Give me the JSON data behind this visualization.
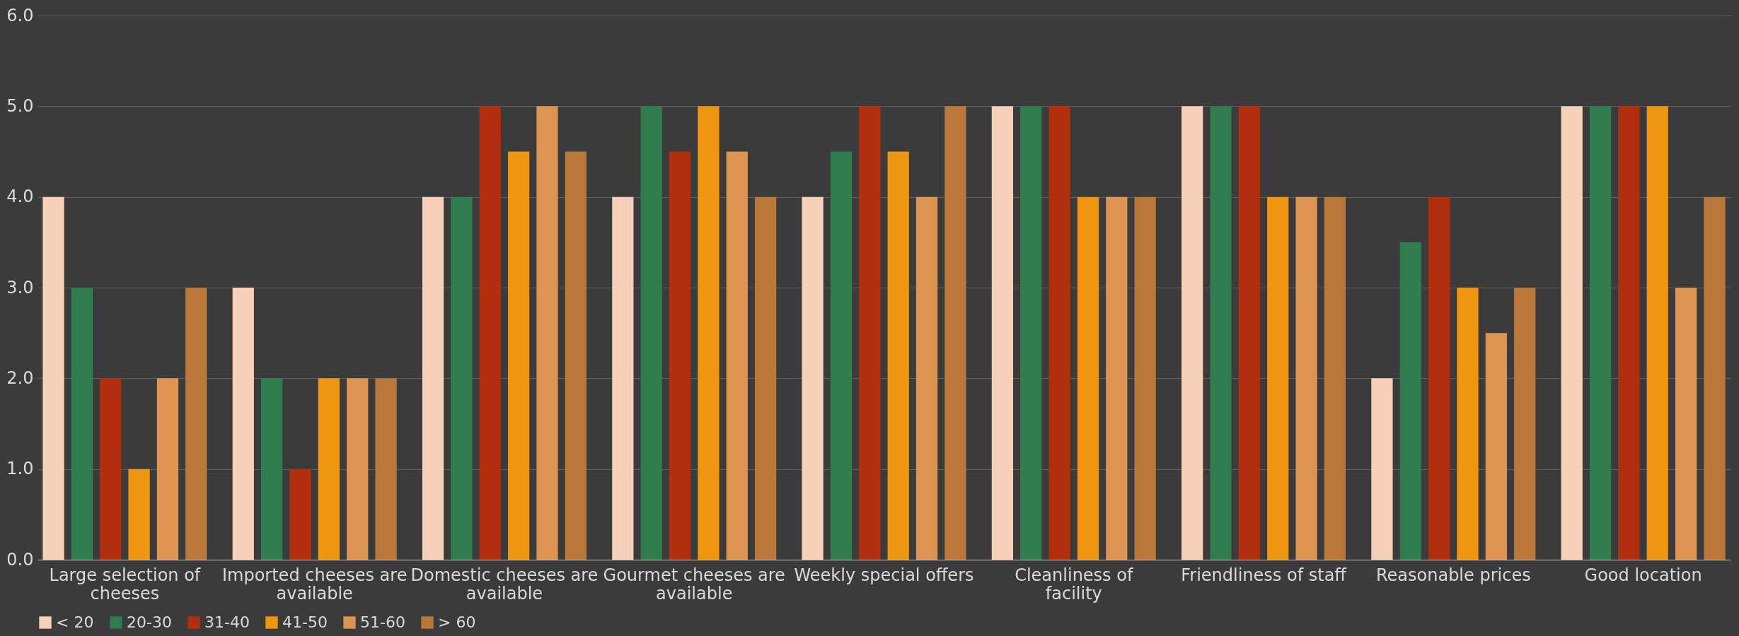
{
  "chart_data": {
    "type": "bar",
    "categories": [
      "Large selection of cheeses",
      "Imported cheeses are available",
      "Domestic cheeses are available",
      "Gourmet cheeses are available",
      "Weekly special offers",
      "Cleanliness of facility",
      "Friendliness of staff",
      "Reasonable prices",
      "Good location"
    ],
    "series": [
      {
        "name": "< 20",
        "color": "#f6d0b8",
        "values": [
          4,
          3,
          4,
          4,
          4,
          5,
          5,
          2,
          5
        ]
      },
      {
        "name": "20-30",
        "color": "#2f7d4e",
        "values": [
          3,
          2,
          4,
          5,
          4.5,
          5,
          5,
          3.5,
          5
        ]
      },
      {
        "name": "31-40",
        "color": "#b32e0c",
        "values": [
          2,
          1,
          5,
          4.5,
          5,
          5,
          5,
          4,
          5
        ]
      },
      {
        "name": "41-50",
        "color": "#f0950f",
        "values": [
          1,
          2,
          4.5,
          5,
          4.5,
          4,
          4,
          3,
          5
        ]
      },
      {
        "name": "51-60",
        "color": "#dd9450",
        "values": [
          2,
          2,
          5,
          4.5,
          4,
          4,
          4,
          2.5,
          3
        ]
      },
      {
        "name": "> 60",
        "color": "#b9783a",
        "values": [
          3,
          2,
          4.5,
          4,
          5,
          4,
          4,
          3,
          4
        ]
      }
    ],
    "ylim": [
      0,
      6
    ],
    "yticks": [
      {
        "value": 0,
        "label": "0.0"
      },
      {
        "value": 1,
        "label": "1.0"
      },
      {
        "value": 2,
        "label": "2.0"
      },
      {
        "value": 3,
        "label": "3.0"
      },
      {
        "value": 4,
        "label": "4.0"
      },
      {
        "value": 5,
        "label": "5.0"
      },
      {
        "value": 6,
        "label": "6.0"
      }
    ],
    "grid": "y",
    "legend": "bottom"
  }
}
